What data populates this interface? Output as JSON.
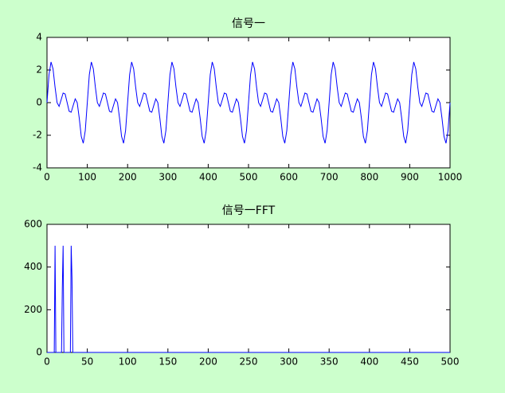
{
  "chart_data": [
    {
      "type": "line",
      "title": "信号一",
      "color": "#0000ff",
      "xlim": [
        0,
        1000
      ],
      "xticks": [
        0,
        100,
        200,
        300,
        400,
        500,
        600,
        700,
        800,
        900,
        1000
      ],
      "ylim": [
        -4,
        4
      ],
      "yticks": [
        -4,
        -2,
        0,
        2,
        4
      ],
      "x": [
        0,
        5,
        10,
        15,
        20,
        25,
        30,
        35,
        40,
        45,
        50,
        55,
        60,
        65,
        70,
        75,
        80,
        85,
        90,
        95,
        100,
        105,
        110,
        115,
        120,
        125,
        130,
        135,
        140,
        145,
        150,
        155,
        160,
        165,
        170,
        175,
        180,
        185,
        190,
        195,
        200,
        205,
        210,
        215,
        220,
        225,
        230,
        235,
        240,
        245,
        250,
        255,
        260,
        265,
        270,
        275,
        280,
        285,
        290,
        295,
        300,
        305,
        310,
        315,
        320,
        325,
        330,
        335,
        340,
        345,
        350,
        355,
        360,
        365,
        370,
        375,
        380,
        385,
        390,
        395,
        400,
        405,
        410,
        415,
        420,
        425,
        430,
        435,
        440,
        445,
        450,
        455,
        460,
        465,
        470,
        475,
        480,
        485,
        490,
        495,
        500,
        505,
        510,
        515,
        520,
        525,
        530,
        535,
        540,
        545,
        550,
        555,
        560,
        565,
        570,
        575,
        580,
        585,
        590,
        595,
        600,
        605,
        610,
        615,
        620,
        625,
        630,
        635,
        640,
        645,
        650,
        655,
        660,
        665,
        670,
        675,
        680,
        685,
        690,
        695,
        700,
        705,
        710,
        715,
        720,
        725,
        730,
        735,
        740,
        745,
        750,
        755,
        760,
        765,
        770,
        775,
        780,
        785,
        790,
        795,
        800,
        805,
        810,
        815,
        820,
        825,
        830,
        835,
        840,
        845,
        850,
        855,
        860,
        865,
        870,
        875,
        880,
        885,
        890,
        895,
        900,
        905,
        910,
        915,
        920,
        925,
        930,
        935,
        940,
        945,
        950,
        955,
        960,
        965,
        970,
        975,
        980,
        985,
        990,
        995,
        1000
      ],
      "values": [
        0,
        1.71,
        2.49,
        2.07,
        0.95,
        0,
        -0.23,
        0.17,
        0.59,
        0.53,
        0,
        -0.53,
        -0.59,
        -0.17,
        0.23,
        0,
        -0.95,
        -2.07,
        -2.49,
        -1.71,
        0,
        1.71,
        2.49,
        2.07,
        0.95,
        0,
        -0.23,
        0.17,
        0.59,
        0.53,
        0,
        -0.53,
        -0.59,
        -0.17,
        0.23,
        0,
        -0.95,
        -2.07,
        -2.49,
        -1.71,
        0,
        1.71,
        2.49,
        2.07,
        0.95,
        0,
        -0.23,
        0.17,
        0.59,
        0.53,
        0,
        -0.53,
        -0.59,
        -0.17,
        0.23,
        0,
        -0.95,
        -2.07,
        -2.49,
        -1.71,
        0,
        1.71,
        2.49,
        2.07,
        0.95,
        0,
        -0.23,
        0.17,
        0.59,
        0.53,
        0,
        -0.53,
        -0.59,
        -0.17,
        0.23,
        0,
        -0.95,
        -2.07,
        -2.49,
        -1.71,
        0,
        1.71,
        2.49,
        2.07,
        0.95,
        0,
        -0.23,
        0.17,
        0.59,
        0.53,
        0,
        -0.53,
        -0.59,
        -0.17,
        0.23,
        0,
        -0.95,
        -2.07,
        -2.49,
        -1.71,
        0,
        1.71,
        2.49,
        2.07,
        0.95,
        0,
        -0.23,
        0.17,
        0.59,
        0.53,
        0,
        -0.53,
        -0.59,
        -0.17,
        0.23,
        0,
        -0.95,
        -2.07,
        -2.49,
        -1.71,
        0,
        1.71,
        2.49,
        2.07,
        0.95,
        0,
        -0.23,
        0.17,
        0.59,
        0.53,
        0,
        -0.53,
        -0.59,
        -0.17,
        0.23,
        0,
        -0.95,
        -2.07,
        -2.49,
        -1.71,
        0,
        1.71,
        2.49,
        2.07,
        0.95,
        0,
        -0.23,
        0.17,
        0.59,
        0.53,
        0,
        -0.53,
        -0.59,
        -0.17,
        0.23,
        0,
        -0.95,
        -2.07,
        -2.49,
        -1.71,
        0,
        1.71,
        2.49,
        2.07,
        0.95,
        0,
        -0.23,
        0.17,
        0.59,
        0.53,
        0,
        -0.53,
        -0.59,
        -0.17,
        0.23,
        0,
        -0.95,
        -2.07,
        -2.49,
        -1.71,
        0,
        1.71,
        2.49,
        2.07,
        0.95,
        0,
        -0.23,
        0.17,
        0.59,
        0.53,
        0,
        -0.53,
        -0.59,
        -0.17,
        0.23,
        0,
        -0.95,
        -2.07,
        -2.49,
        -1.71,
        0
      ]
    },
    {
      "type": "line",
      "title": "信号一FFT",
      "color": "#0000ff",
      "xlim": [
        0,
        500
      ],
      "xticks": [
        0,
        50,
        100,
        150,
        200,
        250,
        300,
        350,
        400,
        450,
        500
      ],
      "ylim": [
        0,
        600
      ],
      "yticks": [
        0,
        200,
        400,
        600
      ],
      "x": [
        0,
        9,
        10,
        11,
        18,
        19,
        20,
        21,
        29,
        30,
        31,
        32,
        500
      ],
      "values": [
        0,
        0,
        500,
        0,
        0,
        300,
        500,
        0,
        0,
        500,
        350,
        0,
        0
      ]
    }
  ]
}
